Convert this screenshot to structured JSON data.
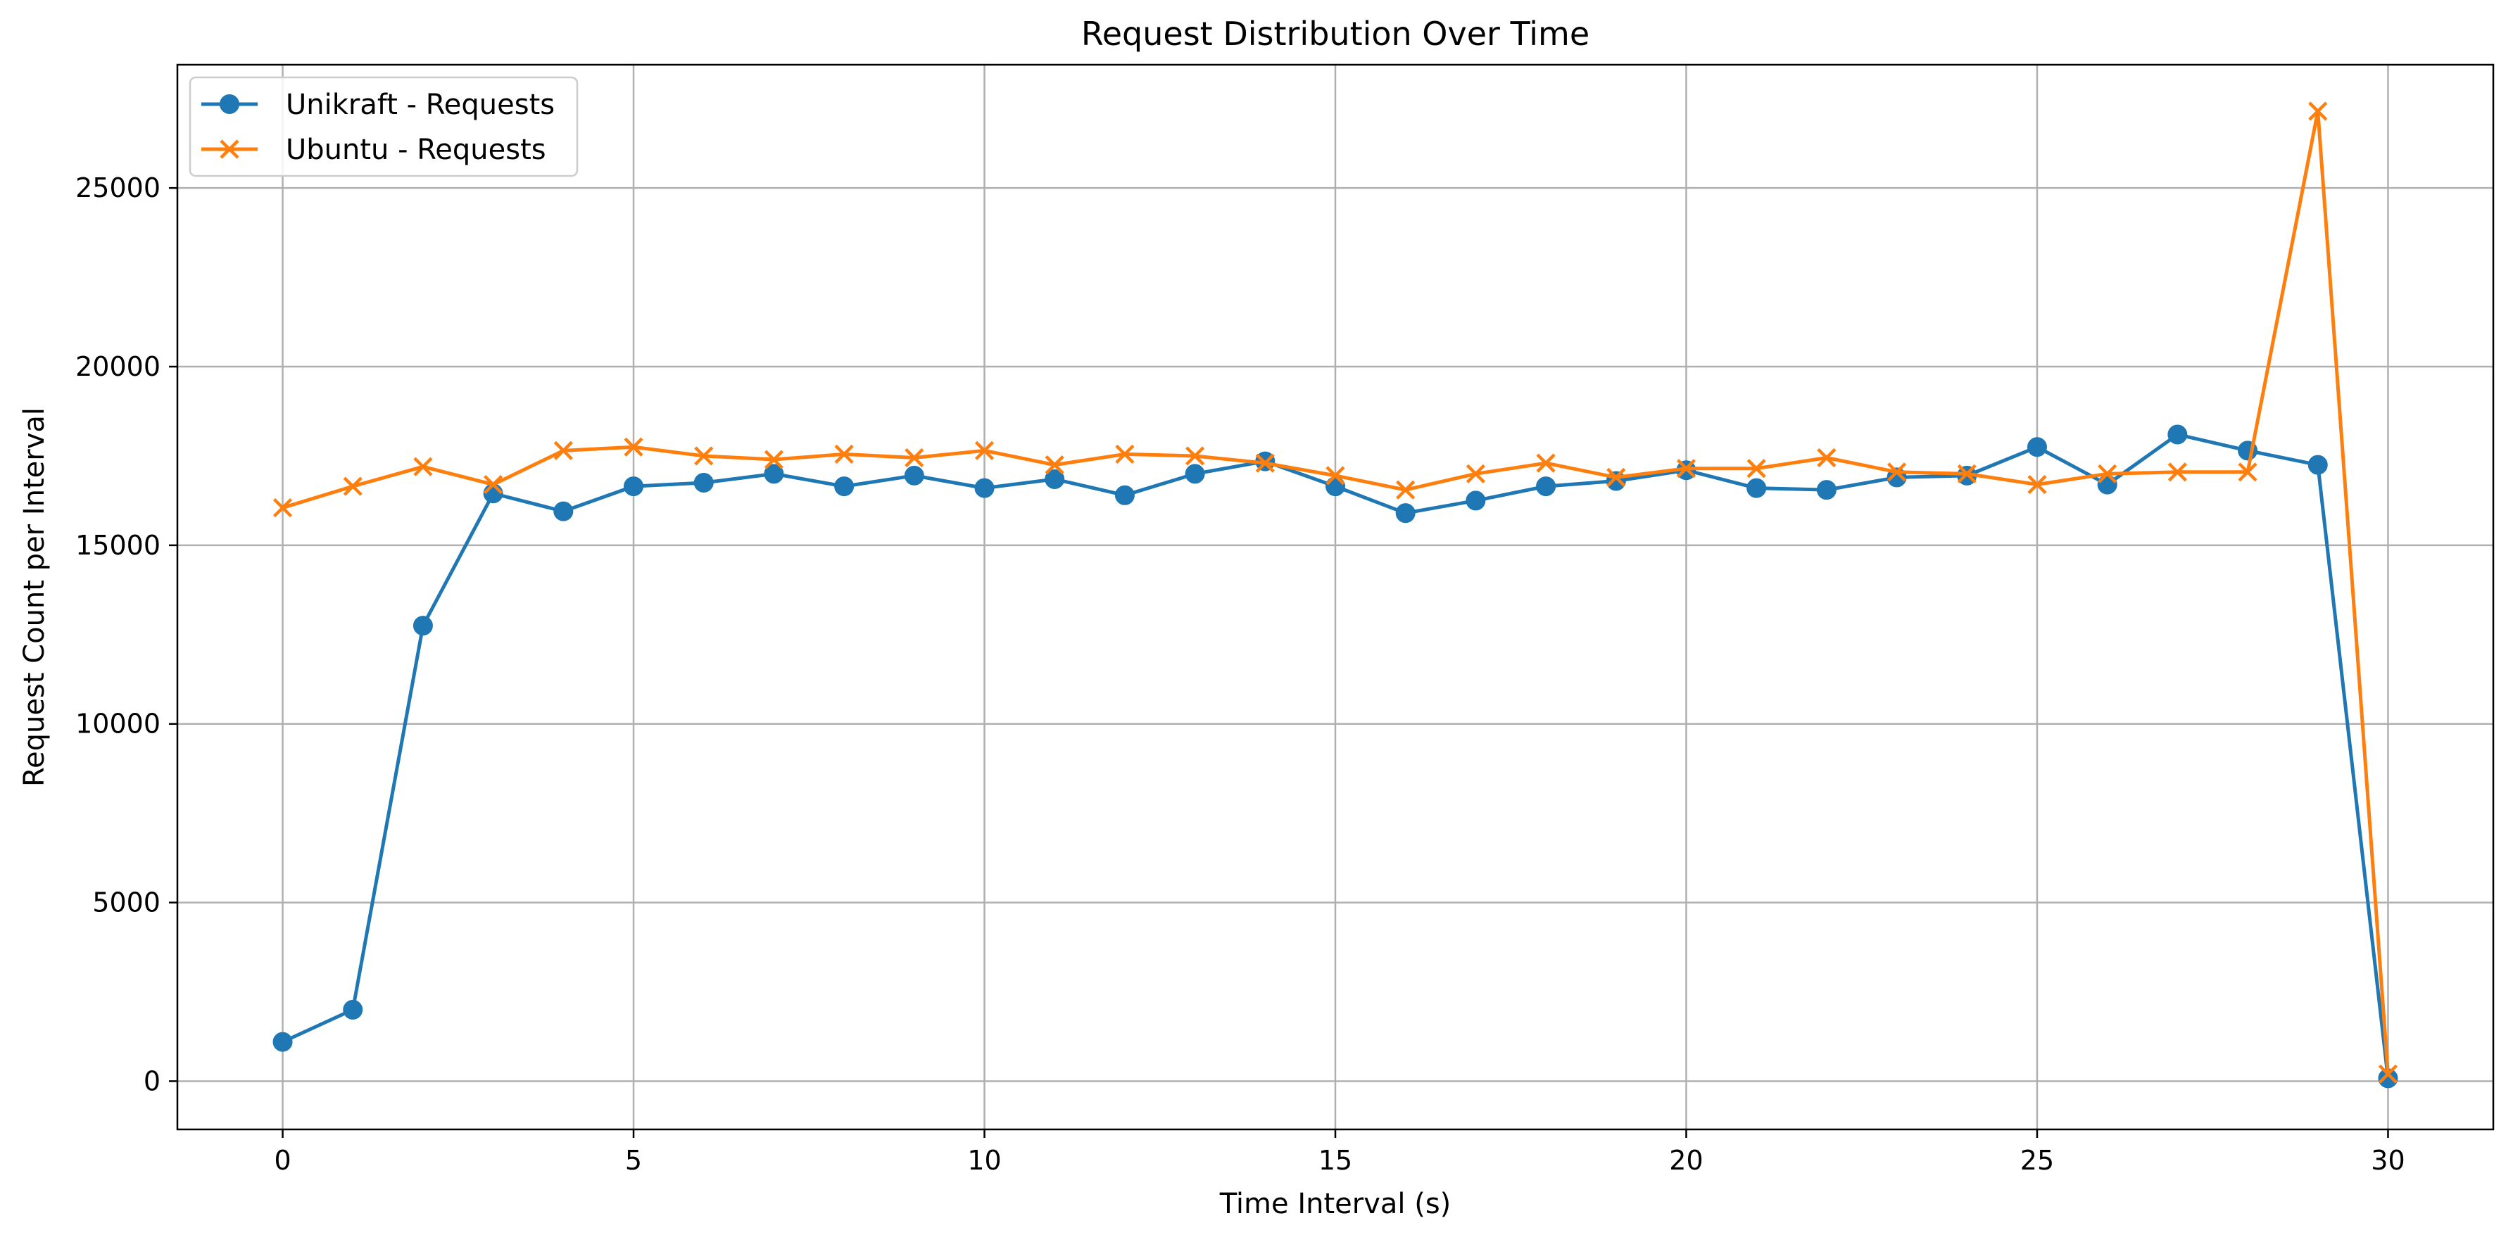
{
  "chart_data": {
    "type": "line",
    "title": "Request Distribution Over Time",
    "xlabel": "Time Interval (s)",
    "ylabel": "Request Count per Interval",
    "xlim": [
      -1.5,
      31.5
    ],
    "ylim": [
      -1350,
      28450
    ],
    "xticks": [
      0,
      5,
      10,
      15,
      20,
      25,
      30
    ],
    "yticks": [
      0,
      5000,
      10000,
      15000,
      20000,
      25000
    ],
    "xtick_labels": [
      "0",
      "5",
      "10",
      "15",
      "20",
      "25",
      "30"
    ],
    "ytick_labels": [
      "0",
      "5000",
      "10000",
      "15000",
      "20000",
      "25000"
    ],
    "grid": true,
    "legend_position": "top-left",
    "x": [
      0,
      1,
      2,
      3,
      4,
      5,
      6,
      7,
      8,
      9,
      10,
      11,
      12,
      13,
      14,
      15,
      16,
      17,
      18,
      19,
      20,
      21,
      22,
      23,
      24,
      25,
      26,
      27,
      28,
      29,
      30
    ],
    "series": [
      {
        "name": "Unikraft - Requests",
        "color": "#1f77b4",
        "marker": "circle",
        "values": [
          1100,
          2000,
          12750,
          16450,
          15950,
          16650,
          16750,
          17000,
          16650,
          16950,
          16600,
          16850,
          16400,
          17000,
          17350,
          16650,
          15900,
          16250,
          16650,
          16800,
          17100,
          16600,
          16550,
          16900,
          16950,
          17750,
          16700,
          18100,
          17650,
          17250,
          80
        ]
      },
      {
        "name": "Ubuntu - Requests",
        "color": "#ff7f0e",
        "marker": "x",
        "values": [
          16050,
          16650,
          17200,
          16700,
          17650,
          17750,
          17500,
          17400,
          17550,
          17450,
          17650,
          17250,
          17550,
          17500,
          17300,
          16950,
          16550,
          17000,
          17300,
          16900,
          17150,
          17150,
          17450,
          17050,
          17000,
          16700,
          17000,
          17050,
          17050,
          27150,
          200
        ]
      }
    ]
  }
}
